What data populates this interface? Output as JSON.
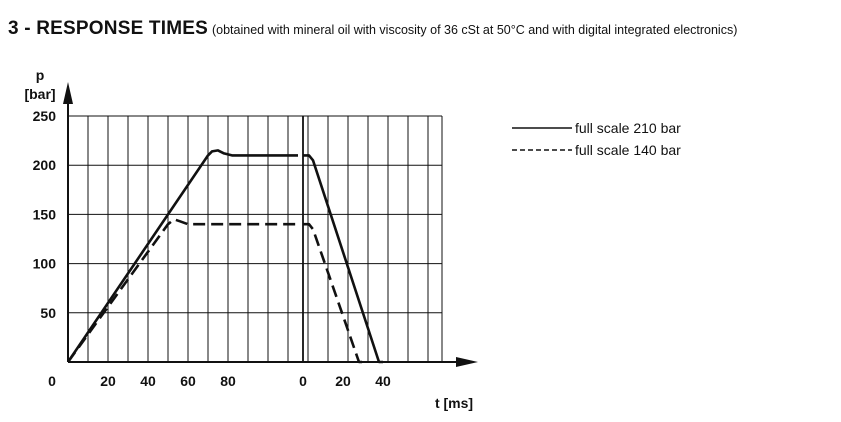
{
  "heading": {
    "main": "3 - RESPONSE TIMES",
    "sub": "(obtained with mineral oil with viscosity of 36 cSt at 50°C and with digital integrated electronics)"
  },
  "chart_data": {
    "type": "line",
    "y_label_top": "p",
    "y_label_unit": "[bar]",
    "x_label": "t [ms]",
    "origin_label": "0",
    "ylim": [
      0,
      250
    ],
    "y_ticks": [
      50,
      100,
      150,
      200,
      250
    ],
    "x_tick_labels": [
      "20",
      "40",
      "60",
      "80",
      "0",
      "20",
      "40"
    ],
    "grid": true,
    "legend_position": "right",
    "segments": [
      {
        "name": "rise",
        "x_range": [
          0,
          115
        ]
      },
      {
        "name": "fall",
        "x_range": [
          0,
          40
        ]
      }
    ],
    "series": [
      {
        "name": "full scale 210 bar",
        "style": "solid",
        "rise": [
          [
            0,
            0
          ],
          [
            70,
            210
          ],
          [
            72,
            214
          ],
          [
            75,
            215
          ],
          [
            78,
            212
          ],
          [
            82,
            210
          ],
          [
            115,
            210
          ]
        ],
        "fall": [
          [
            0,
            210
          ],
          [
            3,
            210
          ],
          [
            5,
            205
          ],
          [
            38,
            0
          ],
          [
            40,
            0
          ]
        ]
      },
      {
        "name": "full scale 140 bar",
        "style": "dashed",
        "rise": [
          [
            0,
            0
          ],
          [
            50,
            140
          ],
          [
            53,
            145
          ],
          [
            56,
            143
          ],
          [
            60,
            140
          ],
          [
            115,
            140
          ]
        ],
        "fall": [
          [
            0,
            140
          ],
          [
            3,
            140
          ],
          [
            5,
            135
          ],
          [
            28,
            0
          ],
          [
            30,
            0
          ]
        ]
      }
    ],
    "colors": {
      "line": "#111111",
      "grid": "#111111"
    }
  }
}
